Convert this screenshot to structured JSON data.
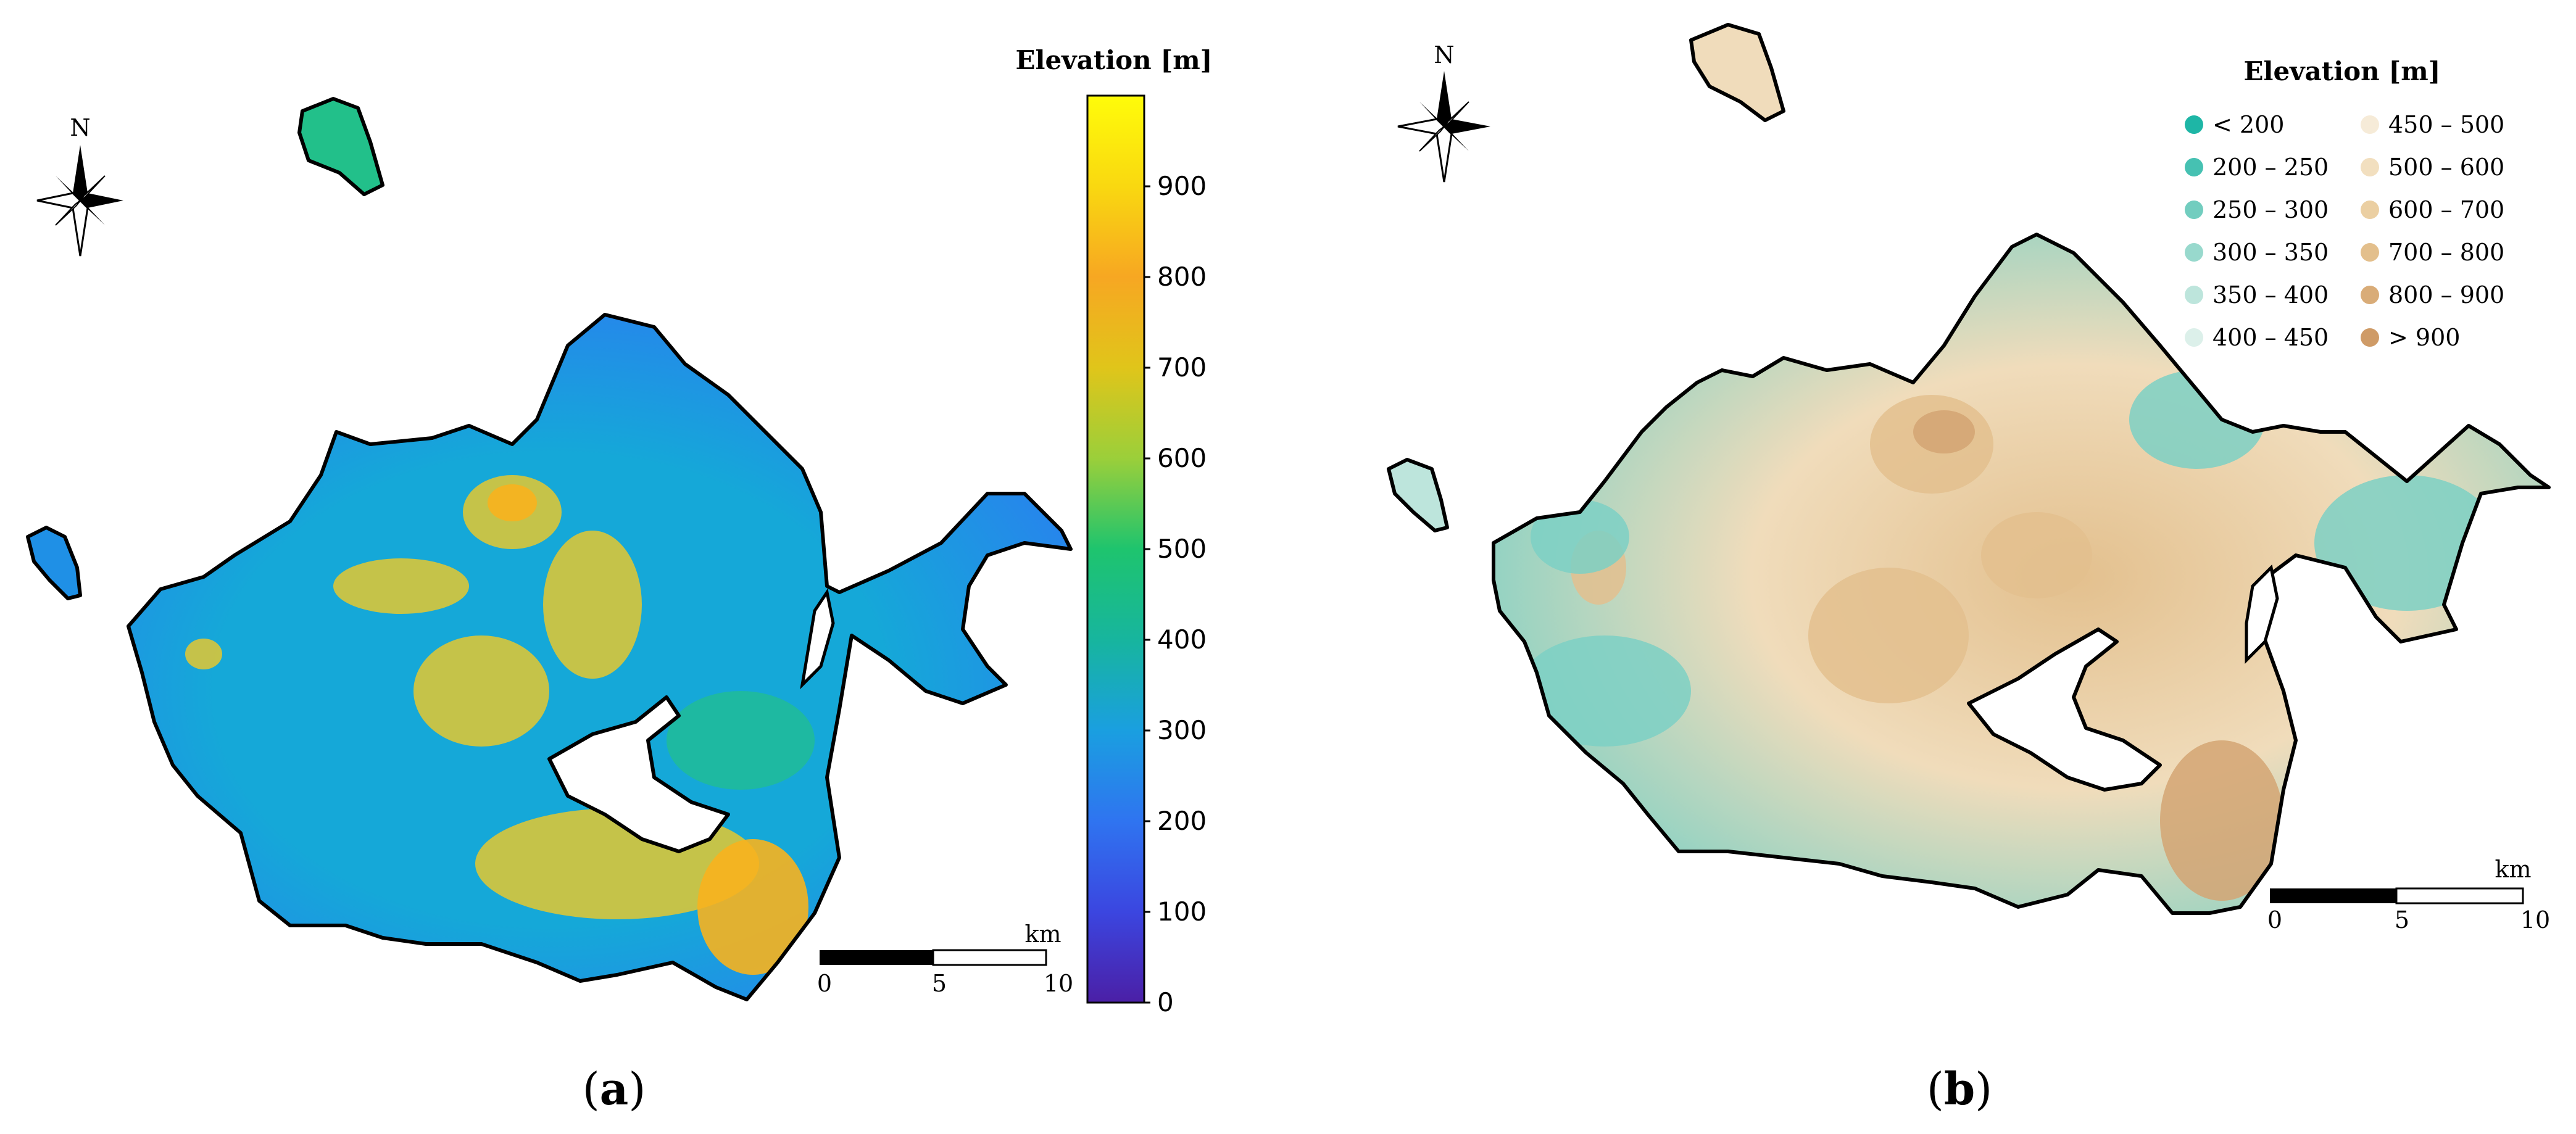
{
  "panel_a": {
    "label_open": "(",
    "label_letter": "a",
    "label_close": ")",
    "north_label": "N",
    "legend_title": "Elevation [m]",
    "colorbar_ticks": [
      "0",
      "100",
      "200",
      "300",
      "400",
      "500",
      "600",
      "700",
      "800",
      "900"
    ],
    "colorbar_colors": [
      "#4b1fa6",
      "#3b46e0",
      "#2f74f0",
      "#1a9fe0",
      "#17b59e",
      "#1ec46e",
      "#9bcf3a",
      "#e0c51a",
      "#f7a722",
      "#f9d810",
      "#fffc0a"
    ],
    "scalebar": {
      "unit": "km",
      "ticks": [
        "0",
        "5",
        "10"
      ]
    },
    "terrain_colors": {
      "low": "#2a7ef0",
      "mid": "#15a8d8",
      "teal": "#22c08a",
      "high": "#d8c53a",
      "peak": "#f7b21e"
    }
  },
  "panel_b": {
    "label_open": "(",
    "label_letter": "b",
    "label_close": ")",
    "north_label": "N",
    "legend_title": "Elevation [m]",
    "legend_items": [
      {
        "label": "< 200",
        "color": "#1eb6a6"
      },
      {
        "label": "200 – 250",
        "color": "#46c1b2"
      },
      {
        "label": "250 – 300",
        "color": "#72cdbf"
      },
      {
        "label": "300 – 350",
        "color": "#98d9cd"
      },
      {
        "label": "350 – 400",
        "color": "#bde5dc"
      },
      {
        "label": "400 – 450",
        "color": "#dcf0ea"
      },
      {
        "label": "450 – 500",
        "color": "#f6ebd8"
      },
      {
        "label": "500 – 600",
        "color": "#f2dfbf"
      },
      {
        "label": "600 – 700",
        "color": "#ebcfa2"
      },
      {
        "label": "700 – 800",
        "color": "#e3bf8c"
      },
      {
        "label": "800 – 900",
        "color": "#d9ac78"
      },
      {
        "label": "> 900",
        "color": "#cf9b67"
      }
    ],
    "scalebar": {
      "unit": "km",
      "ticks": [
        "0",
        "5",
        "10"
      ]
    },
    "terrain_colors": {
      "low": "#7dd0c4",
      "mid": "#f0dcbb",
      "high": "#e3c08e",
      "peak": "#d4a473"
    }
  }
}
